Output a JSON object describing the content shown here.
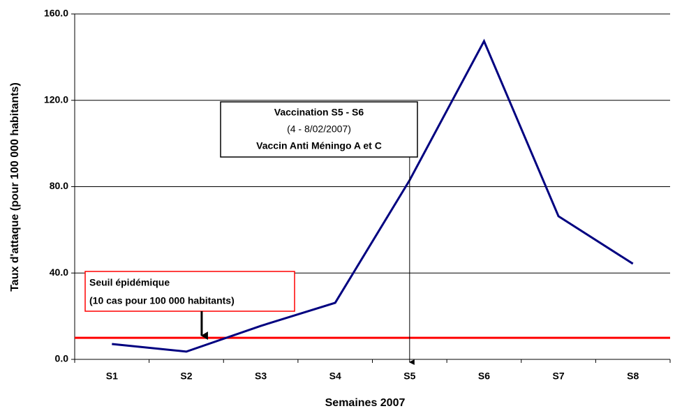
{
  "chart_data": {
    "type": "line",
    "x_label": "Semaines 2007",
    "y_label": "Taux d'attaque (pour 100 000 habitants)",
    "categories": [
      "S1",
      "S2",
      "S3",
      "S4",
      "S5",
      "S6",
      "S7",
      "S8"
    ],
    "series": [
      {
        "name": "Taux d'attaque",
        "color": "#000080",
        "values": [
          7.1,
          3.6,
          15.5,
          26.2,
          83,
          147.4,
          66.3,
          44.3
        ]
      }
    ],
    "ylim": [
      0,
      160
    ],
    "yticks": [
      {
        "value": 0,
        "label": "0.0"
      },
      {
        "value": 40,
        "label": "40.0"
      },
      {
        "value": 80,
        "label": "80.0"
      },
      {
        "value": 120,
        "label": "120.0"
      },
      {
        "value": 160,
        "label": "160.0"
      }
    ],
    "grid": true,
    "threshold": {
      "value": 10,
      "color": "#ff0000"
    },
    "annotations": {
      "vaccination": [
        "Vaccination S5 - S6",
        "(4 - 8/02/2007)",
        "Vaccin Anti Méningo A et C"
      ],
      "seuil": [
        "Seuil épidémique",
        "(10 cas pour 100 000 habitants)"
      ]
    }
  }
}
